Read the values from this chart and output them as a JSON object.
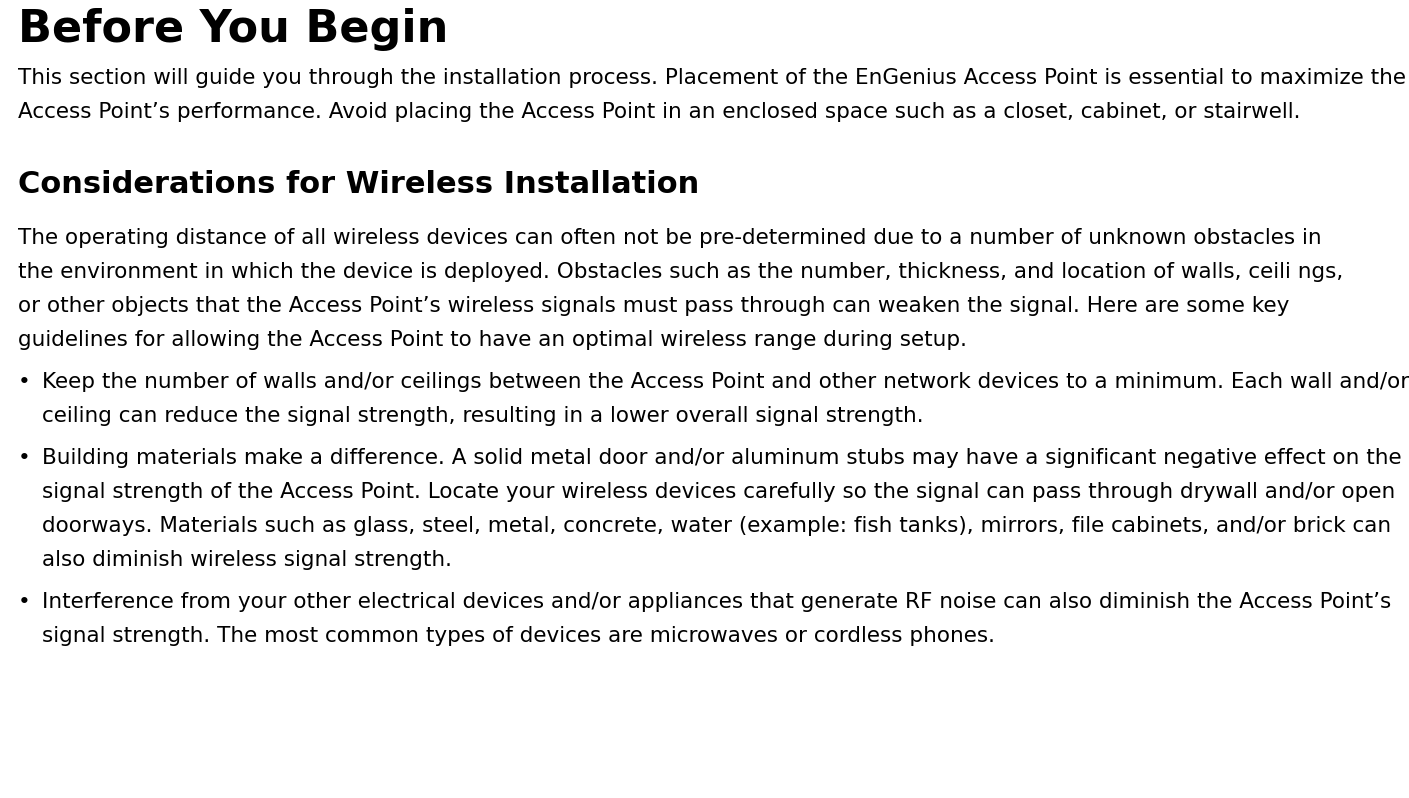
{
  "bg_color": "#ffffff",
  "title": "Before You Begin",
  "title_fontsize": 32,
  "title_font": "DejaVu Sans",
  "body_font": "DejaVu Sans",
  "body_fontsize": 15.5,
  "body_color": "#000000",
  "title_color": "#000000",
  "section2_title": "Considerations for Wireless Installation",
  "section2_title_fontsize": 22,
  "para1_line1": "This section will guide you through the installation process. Placement of the EnGenius Access Point is essential to maximize the",
  "para1_line2": "Access Point’s performance. Avoid placing the Access Point in an enclosed space such as a closet, cabinet, or stairwell.",
  "para2_line1": "The operating distance of all wireless devices can often not be pre-determined due to a number of unknown obstacles in",
  "para2_line2": "the environment in which the device is deployed. Obstacles such as the number, thickness, and location of walls, ceili ngs,",
  "para2_line3": "or other objects that the Access Point’s wireless signals must pass through can weaken the signal. Here are some key",
  "para2_line4": "guidelines for allowing the Access Point to have an optimal wireless range during setup.",
  "bullet1_line1": "Keep the number of walls and/or ceilings between the Access Point and other network devices to a minimum. Each wall and/or",
  "bullet1_line2": "ceiling can reduce the signal strength, resulting in a lower overall signal strength.",
  "bullet2_line1": "Building materials make a difference. A solid metal door and/or aluminum stubs may have a significant negative effect on the",
  "bullet2_line2": "signal strength of the Access Point. Locate your wireless devices carefully so the signal can pass through drywall and/or open",
  "bullet2_line3": "doorways. Materials such as glass, steel, metal, concrete, water (example: fish tanks), mirrors, file cabinets, and/or brick can",
  "bullet2_line4": "also diminish wireless signal strength.",
  "bullet3_line1": "Interference from your other electrical devices and/or appliances that generate RF noise can also diminish the Access Point’s",
  "bullet3_line2": "signal strength. The most common types of devices are microwaves or cordless phones.",
  "fig_width": 14.09,
  "fig_height": 7.98,
  "fig_dpi": 100
}
